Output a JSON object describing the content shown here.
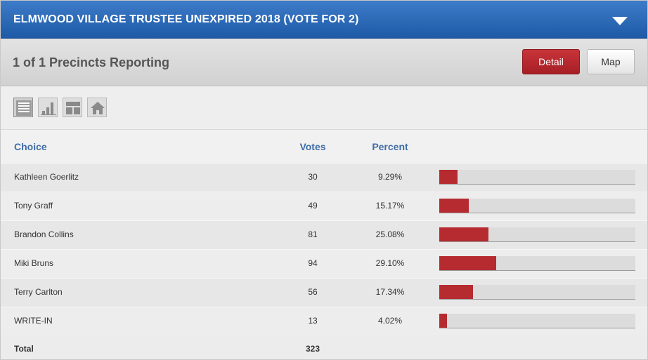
{
  "header": {
    "title": "ELMWOOD VILLAGE TRUSTEE UNEXPIRED 2018 (VOTE FOR 2)"
  },
  "subbar": {
    "reporting": "1 of 1 Precincts Reporting",
    "detail_label": "Detail",
    "map_label": "Map"
  },
  "toolbar": {
    "icons": [
      "table-view-icon",
      "bar-chart-view-icon",
      "split-view-icon",
      "home-view-icon"
    ]
  },
  "table": {
    "headers": {
      "choice": "Choice",
      "votes": "Votes",
      "percent": "Percent"
    },
    "rows": [
      {
        "choice": "Kathleen Goerlitz",
        "votes": "30",
        "percent": "9.29%",
        "pct_value": 9.29
      },
      {
        "choice": "Tony Graff",
        "votes": "49",
        "percent": "15.17%",
        "pct_value": 15.17
      },
      {
        "choice": "Brandon Collins",
        "votes": "81",
        "percent": "25.08%",
        "pct_value": 25.08
      },
      {
        "choice": "Miki Bruns",
        "votes": "94",
        "percent": "29.10%",
        "pct_value": 29.1
      },
      {
        "choice": "Terry Carlton",
        "votes": "56",
        "percent": "17.34%",
        "pct_value": 17.34
      },
      {
        "choice": "WRITE-IN",
        "votes": "13",
        "percent": "4.02%",
        "pct_value": 4.02
      }
    ],
    "total": {
      "label": "Total",
      "votes": "323"
    }
  },
  "colors": {
    "header": "#2a68b4",
    "accent": "#b52b30",
    "link_blue": "#3e6ea8"
  }
}
